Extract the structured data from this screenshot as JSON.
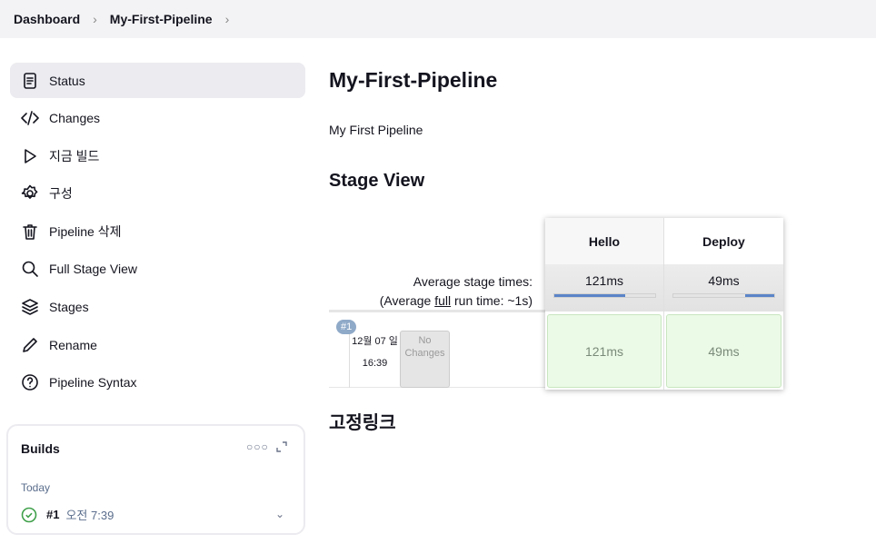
{
  "breadcrumb": [
    "Dashboard",
    "My-First-Pipeline"
  ],
  "sidebar": {
    "items": [
      {
        "label": "Status",
        "icon": "document-icon"
      },
      {
        "label": "Changes",
        "icon": "code-icon"
      },
      {
        "label": "지금 빌드",
        "icon": "play-icon"
      },
      {
        "label": "구성",
        "icon": "gear-icon"
      },
      {
        "label": "Pipeline 삭제",
        "icon": "trash-icon"
      },
      {
        "label": "Full Stage View",
        "icon": "search-icon"
      },
      {
        "label": "Stages",
        "icon": "layers-icon"
      },
      {
        "label": "Rename",
        "icon": "pencil-icon"
      },
      {
        "label": "Pipeline Syntax",
        "icon": "help-icon"
      }
    ]
  },
  "builds": {
    "title": "Builds",
    "group": "Today",
    "items": [
      {
        "number": "#1",
        "time": "오전 7:39",
        "status": "success"
      }
    ]
  },
  "main": {
    "title": "My-First-Pipeline",
    "description": "My First Pipeline",
    "stage_view_title": "Stage View",
    "avg_label": "Average stage times:",
    "avg_full_prefix": "(Average ",
    "avg_full_link": "full",
    "avg_full_suffix": " run time: ~1s)",
    "stages": [
      {
        "name": "Hello",
        "avg": "121ms",
        "bar_fraction": 0.71,
        "bar_align": "left"
      },
      {
        "name": "Deploy",
        "avg": "49ms",
        "bar_fraction": 0.29,
        "bar_align": "right"
      }
    ],
    "runs": [
      {
        "badge": "#1",
        "date": "12월 07 일",
        "time": "16:39",
        "changes": "No Changes",
        "durations": [
          "121ms",
          "49ms"
        ]
      }
    ],
    "permalinks_title": "고정링크"
  },
  "colors": {
    "success": "#ebfae6",
    "bar": "#5b84c8",
    "active_item": "#ebebf0"
  }
}
